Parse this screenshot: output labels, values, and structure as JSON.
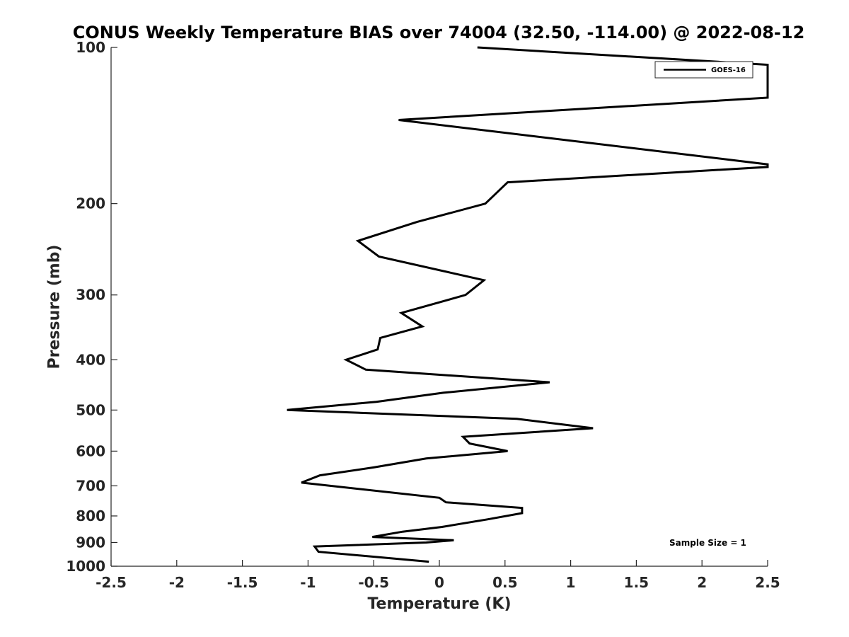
{
  "chart_data": {
    "type": "line",
    "title": "CONUS Weekly Temperature BIAS over 74004 (32.50, -114.00) @ 2022-08-12",
    "xlabel": "Temperature (K)",
    "ylabel": "Pressure (mb)",
    "xlim": [
      -2.5,
      2.5
    ],
    "ylim": [
      100,
      1000
    ],
    "y_scale": "log",
    "y_reversed": true,
    "x_ticks": [
      -2.5,
      -2,
      -1.5,
      -1,
      -0.5,
      0,
      0.5,
      1,
      1.5,
      2,
      2.5
    ],
    "x_tick_labels": [
      "-2.5",
      "-2",
      "-1.5",
      "-1",
      "-0.5",
      "0",
      "0.5",
      "1",
      "1.5",
      "2",
      "2.5"
    ],
    "y_ticks": [
      100,
      200,
      300,
      400,
      500,
      600,
      700,
      800,
      900,
      1000
    ],
    "y_tick_labels": [
      "100",
      "200",
      "300",
      "400",
      "500",
      "600",
      "700",
      "800",
      "900",
      "1000"
    ],
    "grid": false,
    "legend_position": "top-right",
    "annotation": "Sample Size = 1",
    "series": [
      {
        "name": "GOES-16",
        "color": "#000000",
        "points": [
          {
            "x": 0.29,
            "y": 100
          },
          {
            "x": 2.5,
            "y": 108
          },
          {
            "x": 2.5,
            "y": 125
          },
          {
            "x": -0.31,
            "y": 138
          },
          {
            "x": 2.5,
            "y": 168
          },
          {
            "x": 2.5,
            "y": 170
          },
          {
            "x": 0.52,
            "y": 182
          },
          {
            "x": 0.35,
            "y": 200
          },
          {
            "x": -0.17,
            "y": 217
          },
          {
            "x": -0.62,
            "y": 236
          },
          {
            "x": -0.46,
            "y": 253
          },
          {
            "x": 0.34,
            "y": 281
          },
          {
            "x": 0.2,
            "y": 300
          },
          {
            "x": -0.29,
            "y": 325
          },
          {
            "x": -0.13,
            "y": 345
          },
          {
            "x": -0.45,
            "y": 363
          },
          {
            "x": -0.47,
            "y": 382
          },
          {
            "x": -0.71,
            "y": 400
          },
          {
            "x": -0.56,
            "y": 418
          },
          {
            "x": 0.84,
            "y": 442
          },
          {
            "x": 0.03,
            "y": 463
          },
          {
            "x": -0.48,
            "y": 482
          },
          {
            "x": -1.16,
            "y": 500
          },
          {
            "x": 0.59,
            "y": 520
          },
          {
            "x": 1.17,
            "y": 542
          },
          {
            "x": 0.18,
            "y": 563
          },
          {
            "x": 0.23,
            "y": 580
          },
          {
            "x": 0.52,
            "y": 600
          },
          {
            "x": -0.1,
            "y": 620
          },
          {
            "x": -0.5,
            "y": 645
          },
          {
            "x": -0.91,
            "y": 668
          },
          {
            "x": -1.05,
            "y": 690
          },
          {
            "x": 0.0,
            "y": 738
          },
          {
            "x": 0.05,
            "y": 753
          },
          {
            "x": 0.63,
            "y": 772
          },
          {
            "x": 0.63,
            "y": 790
          },
          {
            "x": 0.37,
            "y": 812
          },
          {
            "x": 0.02,
            "y": 840
          },
          {
            "x": -0.28,
            "y": 858
          },
          {
            "x": -0.51,
            "y": 878
          },
          {
            "x": 0.11,
            "y": 891
          },
          {
            "x": -0.1,
            "y": 900
          },
          {
            "x": -0.95,
            "y": 916
          },
          {
            "x": -0.92,
            "y": 938
          },
          {
            "x": -0.08,
            "y": 980
          }
        ]
      }
    ]
  }
}
